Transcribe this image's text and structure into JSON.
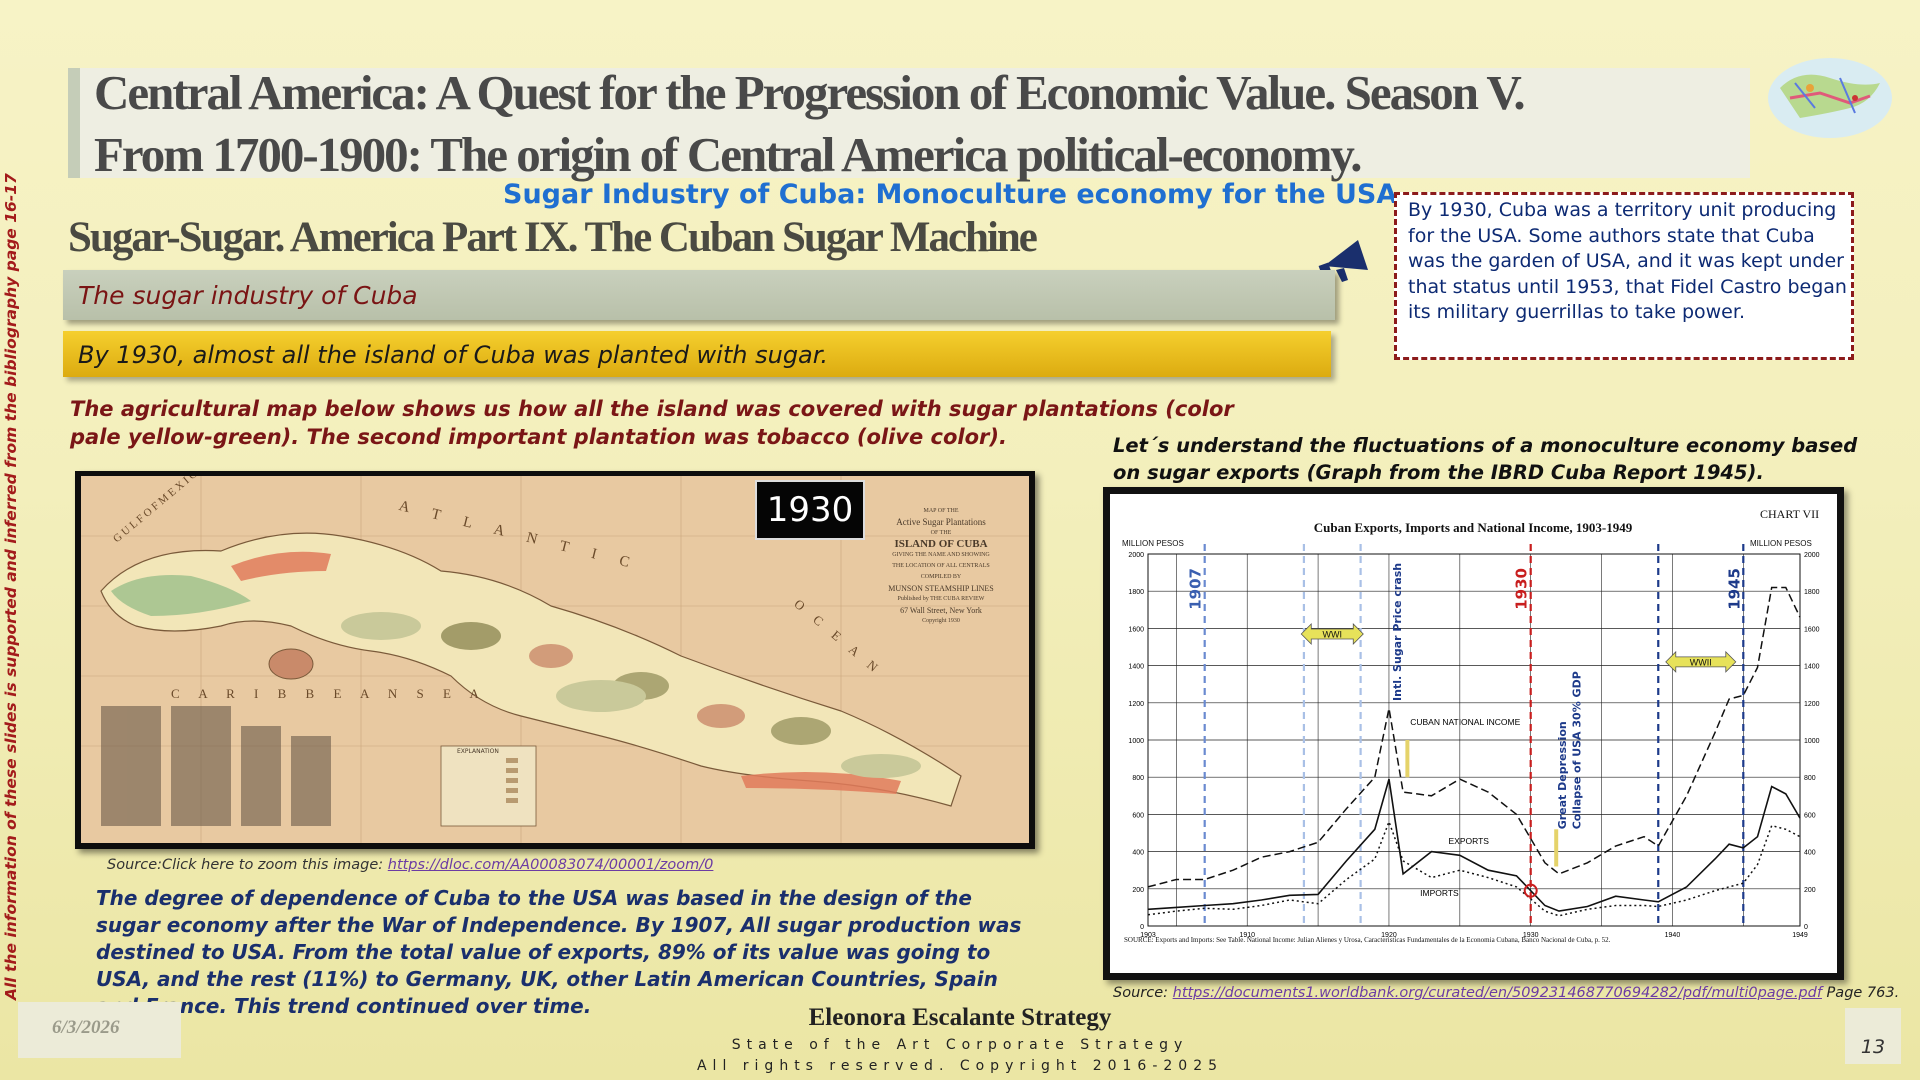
{
  "title": {
    "line1": "Central America:  A Quest for the Progression of  Economic Value. Season V.",
    "line2": "From 1700-1900: The origin of  Central America political-economy."
  },
  "subtitle": "Sugar Industry of Cuba: Monoculture economy for the USA",
  "part_heading": "Sugar-Sugar. America Part IX. The Cuban Sugar Machine",
  "section_bar": "The sugar industry of Cuba",
  "highlight_bar": "By 1930, almost all the island of Cuba was planted with sugar.",
  "map_description": "The agricultural map below shows us how all the island was covered with sugar plantations (color pale yellow-green). The second important plantation was tobacco (olive color).",
  "callout": "By 1930, Cuba was a territory unit producing for the USA.  Some authors state that Cuba was the garden of USA, and it was kept under that status until 1953, that Fidel Castro began its military guerrillas to take power.",
  "graph_intro": "Let´s understand the fluctuations of a monoculture economy based on sugar exports (Graph from the IBRD Cuba Report 1945).",
  "vertical_note": "All the information of these slides is supported and inferred from the bibliography page 16-17",
  "map": {
    "year_badge": "1930",
    "title_lines": [
      "MAP OF THE",
      "Active Sugar Plantations",
      "OF THE",
      "ISLAND OF CUBA",
      "GIVING THE NAME AND SHOWING",
      "THE LOCATION OF ALL CENTRALS",
      "COMPILED BY",
      "MUNSON STEAMSHIP LINES",
      "Published by THE CUBA REVIEW",
      "67 Wall Street, New York",
      "Copyright 1930"
    ],
    "sea_labels": [
      "G U L F   O F   M E X I C O",
      "A T L A N T I C",
      "O C E A N",
      "C A R I B B E A N   S E A"
    ],
    "explanation_title": "EXPLANATION",
    "source_prefix": "Source:Click here to zoom this image: ",
    "source_link": "https://dloc.com/AA00083074/00001/zoom/0",
    "colors": {
      "sea": "#e8c9a1",
      "land": "#f2e6b8",
      "sugar": "#c9c99a",
      "tobacco": "#8e8a55",
      "highlight": "#e07a5a"
    }
  },
  "dependence_text": "The degree of dependence of Cuba to the USA was based in the design of the sugar economy after the War of Independence.  By 1907, All sugar production was destined to USA. From the total value of exports, 89% of its value was going to USA, and the rest  (11%) to Germany, UK, other Latin American Countries, Spain and France. This trend continued over time.",
  "chart_source": {
    "prefix": "Source: ",
    "link": "https://documents1.worldbank.org/curated/en/509231468770694282/pdf/multi0page.pdf",
    "suffix": " Page 763."
  },
  "footer": {
    "date": "6/3/2026",
    "brand": "Eleonora Escalante Strategy",
    "tagline": "State of the Art Corporate Strategy",
    "rights": "All rights reserved. Copyright 2016-2025",
    "page_number": "13"
  },
  "chart_data": {
    "type": "line",
    "chart_label": "CHART VII",
    "title": "Cuban Exports, Imports and National Income, 1903-1949",
    "ylabel_left": "MILLION PESOS",
    "ylabel_right": "MILLION PESOS",
    "x_ticks": [
      "1903",
      "1910",
      "1920",
      "1930",
      "1940",
      "1949"
    ],
    "y_ticks": [
      "0",
      "200",
      "400",
      "600",
      "800",
      "1000",
      "1200",
      "1400",
      "1600",
      "1800",
      "2000"
    ],
    "xlim": [
      1903,
      1949
    ],
    "ylim": [
      0,
      2000
    ],
    "source_note": "SOURCE: Exports and Imports: See Table. National Income: Julian Alienes y Urosa, Caracteristicas Fundamentales de la Economia Cubana, Banco Nacional de Cuba, p. 52.",
    "series": [
      {
        "name": "CUBAN NATIONAL INCOME",
        "style": "dashed",
        "x": [
          1903,
          1905,
          1907,
          1909,
          1911,
          1913,
          1915,
          1917,
          1919,
          1920,
          1921,
          1923,
          1925,
          1927,
          1929,
          1931,
          1932,
          1934,
          1936,
          1938,
          1939,
          1941,
          1943,
          1944,
          1945,
          1946,
          1947,
          1948,
          1949
        ],
        "y": [
          210,
          250,
          250,
          300,
          370,
          400,
          450,
          630,
          800,
          1170,
          720,
          700,
          790,
          720,
          600,
          340,
          280,
          340,
          430,
          480,
          430,
          700,
          1040,
          1220,
          1240,
          1390,
          1820,
          1820,
          1660
        ]
      },
      {
        "name": "EXPORTS",
        "style": "solid",
        "x": [
          1903,
          1905,
          1907,
          1909,
          1911,
          1913,
          1915,
          1917,
          1919,
          1920,
          1921,
          1923,
          1925,
          1927,
          1929,
          1931,
          1932,
          1934,
          1936,
          1938,
          1939,
          1941,
          1943,
          1944,
          1945,
          1946,
          1947,
          1948,
          1949
        ],
        "y": [
          90,
          100,
          110,
          120,
          140,
          165,
          170,
          350,
          520,
          790,
          280,
          400,
          380,
          300,
          270,
          110,
          80,
          105,
          160,
          140,
          130,
          210,
          360,
          440,
          420,
          480,
          750,
          710,
          580
        ]
      },
      {
        "name": "IMPORTS",
        "style": "dotted",
        "x": [
          1903,
          1905,
          1907,
          1909,
          1911,
          1913,
          1915,
          1917,
          1919,
          1920,
          1921,
          1923,
          1925,
          1927,
          1929,
          1931,
          1932,
          1934,
          1936,
          1938,
          1939,
          1941,
          1943,
          1944,
          1945,
          1946,
          1947,
          1948,
          1949
        ],
        "y": [
          60,
          80,
          95,
          90,
          110,
          140,
          120,
          250,
          360,
          560,
          350,
          260,
          300,
          260,
          210,
          80,
          55,
          90,
          110,
          110,
          105,
          140,
          190,
          210,
          230,
          330,
          540,
          520,
          480
        ]
      }
    ],
    "annotations": [
      {
        "text": "1907",
        "x": 1907,
        "color": "#3a5fb0"
      },
      {
        "text": "WWI",
        "x": 1916,
        "color": "#e7e25a"
      },
      {
        "text": "Intl. Sugar Price crash",
        "x": 1920,
        "color": "#1d3a8a"
      },
      {
        "text": "1930",
        "x": 1930,
        "color": "#c81e1e"
      },
      {
        "text": "Great Depression",
        "x": 1932.5,
        "color": "#1d3a8a"
      },
      {
        "text": "Collapse of USA 30% GDP",
        "x": 1933.5,
        "color": "#1d3a8a"
      },
      {
        "text": "WWII",
        "x": 1942,
        "color": "#e7e25a"
      },
      {
        "text": "1945",
        "x": 1945,
        "color": "#1d3a8a"
      }
    ],
    "vlines": [
      {
        "x": 1907,
        "color": "#6a8ad0",
        "style": "dashed"
      },
      {
        "x": 1914,
        "color": "#a9c0e6",
        "style": "dashed"
      },
      {
        "x": 1918,
        "color": "#a9c0e6",
        "style": "dashed"
      },
      {
        "x": 1930,
        "color": "#c81e1e",
        "style": "dashed"
      },
      {
        "x": 1939,
        "color": "#1d3a8a",
        "style": "dashed"
      },
      {
        "x": 1945,
        "color": "#1d3a8a",
        "style": "dashed"
      }
    ]
  }
}
